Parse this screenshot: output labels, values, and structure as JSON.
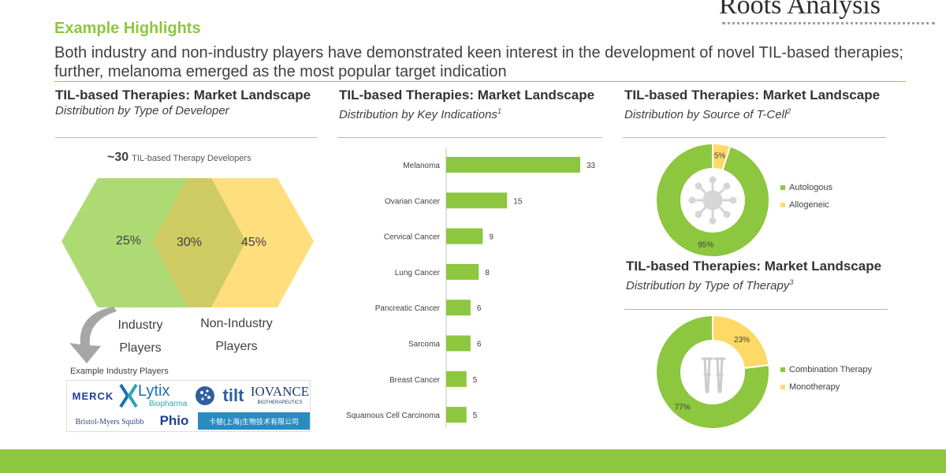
{
  "brand": {
    "logo_text": "Roots Analysis"
  },
  "header": {
    "eyebrow": "Example Highlights",
    "headline": "Both industry and non-industry players have demonstrated keen interest in the development of novel TIL-based therapies; further, melanoma emerged as the most popular target indication"
  },
  "colors": {
    "accent_green": "#8dc63f",
    "accent_yellow": "#ffd966",
    "overlap": "#d4cf6a"
  },
  "panel_developer": {
    "title": "TIL-based Therapies: Market Landscape",
    "subtitle": "Distribution by Type of Developer",
    "count": "~30",
    "count_caption": "TIL-based  Therapy  Developers",
    "industry_pct": "25%",
    "overlap_pct": "30%",
    "non_industry_pct": "45%",
    "industry_label_1": "Industry",
    "industry_label_2": "Players",
    "non_industry_label_1": "Non-Industry",
    "non_industry_label_2": "Players",
    "example_label": "Example Industry Players",
    "company_logos": [
      "MERCK",
      "Lytix",
      "Biopharma",
      "tilt",
      "IOVANCE",
      "BIOTHERAPEUTICS",
      "Bristol-Myers Squibb",
      "Phio",
      "卡替(上海)生物技术有限公司"
    ]
  },
  "panel_indications": {
    "title": "TIL-based Therapies: Market Landscape",
    "subtitle": "Distribution by Key Indications",
    "subtitle_note": "1"
  },
  "panel_tcell": {
    "title": "TIL-based Therapies: Market Landscape",
    "subtitle": "Distribution by Source of T-Cell",
    "subtitle_note": "2",
    "center_icon": "virus-icon"
  },
  "panel_therapy": {
    "title": "TIL-based Therapies: Market Landscape",
    "subtitle": "Distribution by Type of Therapy",
    "subtitle_note": "3",
    "center_icon": "crutches-icon"
  },
  "chart_data": [
    {
      "type": "bar",
      "orientation": "horizontal",
      "title": "Distribution by Key Indications",
      "categories": [
        "Melanoma",
        "Ovarian Cancer",
        "Cervical Cancer",
        "Lung Cancer",
        "Pancreatic Cancer",
        "Sarcoma",
        "Breast Cancer",
        "Squamous Cell Carcinoma"
      ],
      "values": [
        33,
        15,
        9,
        8,
        6,
        6,
        5,
        5
      ],
      "data_labels": [
        "33",
        "15",
        "9",
        "8",
        "6",
        "6",
        "5",
        "5"
      ],
      "color": "#8dc63f",
      "grid": false
    },
    {
      "type": "pie",
      "donut": true,
      "title": "Distribution by Source of T-Cell",
      "categories": [
        "Autologous",
        "Allogeneic"
      ],
      "values": [
        95,
        5
      ],
      "data_labels": [
        "95%",
        "5%"
      ],
      "colors": [
        "#8dc63f",
        "#ffd966"
      ],
      "legend": "right"
    },
    {
      "type": "pie",
      "donut": true,
      "title": "Distribution by Type of Therapy",
      "categories": [
        "Combination Therapy",
        "Monotherapy"
      ],
      "values": [
        77,
        23
      ],
      "data_labels": [
        "77%",
        "23%"
      ],
      "colors": [
        "#8dc63f",
        "#ffd966"
      ],
      "legend": "right"
    }
  ]
}
